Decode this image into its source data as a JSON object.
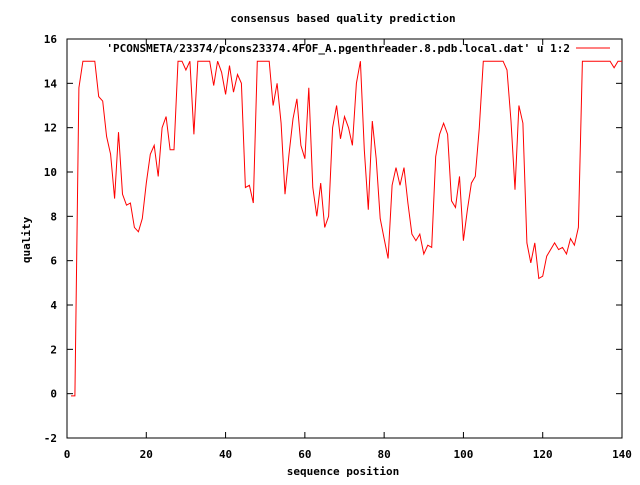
{
  "chart_data": {
    "type": "line",
    "title": "consensus based quality prediction",
    "xlabel": "sequence position",
    "ylabel": "quality",
    "xlim": [
      0,
      140
    ],
    "ylim": [
      -2,
      16
    ],
    "xticks": [
      0,
      20,
      40,
      60,
      80,
      100,
      120,
      140
    ],
    "yticks": [
      -2,
      0,
      2,
      4,
      6,
      8,
      10,
      12,
      14,
      16
    ],
    "grid": false,
    "legend_position": "top-right",
    "series": [
      {
        "name": "'PCONSMETA/23374/pcons23374.4FOF_A.pgenthreader.8.pdb.local.dat' u 1:2",
        "color": "#ff0000",
        "x": [
          1,
          2,
          3,
          4,
          5,
          6,
          7,
          8,
          9,
          10,
          11,
          12,
          13,
          14,
          15,
          16,
          17,
          18,
          19,
          20,
          21,
          22,
          23,
          24,
          25,
          26,
          27,
          28,
          29,
          30,
          31,
          32,
          33,
          34,
          35,
          36,
          37,
          38,
          39,
          40,
          41,
          42,
          43,
          44,
          45,
          46,
          47,
          48,
          49,
          50,
          51,
          52,
          53,
          54,
          55,
          56,
          57,
          58,
          59,
          60,
          61,
          62,
          63,
          64,
          65,
          66,
          67,
          68,
          69,
          70,
          71,
          72,
          73,
          74,
          75,
          76,
          77,
          78,
          79,
          80,
          81,
          82,
          83,
          84,
          85,
          86,
          87,
          88,
          89,
          90,
          91,
          92,
          93,
          94,
          95,
          96,
          97,
          98,
          99,
          100,
          101,
          102,
          103,
          104,
          105,
          106,
          107,
          108,
          109,
          110,
          111,
          112,
          113,
          114,
          115,
          116,
          117,
          118,
          119,
          120,
          121,
          122,
          123,
          124,
          125,
          126,
          127,
          128,
          129,
          130,
          131,
          132,
          133,
          134,
          135,
          136,
          137,
          138,
          139,
          140
        ],
        "values": [
          -0.1,
          -0.1,
          13.8,
          15.0,
          15.0,
          15.0,
          15.0,
          13.4,
          13.2,
          11.6,
          10.8,
          8.8,
          11.8,
          9.0,
          8.5,
          8.6,
          7.5,
          7.3,
          7.9,
          9.5,
          10.8,
          11.2,
          9.8,
          12.0,
          12.5,
          11.0,
          11.0,
          15.0,
          15.0,
          14.6,
          15.0,
          11.7,
          15.0,
          15.0,
          15.0,
          15.0,
          13.9,
          15.0,
          14.5,
          13.5,
          14.8,
          13.6,
          14.4,
          14.0,
          9.3,
          9.4,
          8.6,
          15.0,
          15.0,
          15.0,
          15.0,
          13.0,
          14.0,
          12.2,
          9.0,
          10.8,
          12.4,
          13.3,
          11.2,
          10.6,
          13.8,
          9.3,
          8.0,
          9.5,
          7.5,
          8.0,
          12.0,
          13.0,
          11.5,
          12.5,
          12.0,
          11.2,
          14.0,
          15.0,
          11.0,
          8.3,
          12.3,
          10.6,
          7.9,
          7.0,
          6.1,
          9.4,
          10.2,
          9.4,
          10.2,
          8.6,
          7.2,
          6.9,
          7.2,
          6.3,
          6.7,
          6.6,
          10.7,
          11.7,
          12.2,
          11.7,
          8.7,
          8.4,
          9.8,
          6.9,
          8.3,
          9.5,
          9.8,
          12.0,
          15.0,
          15.0,
          15.0,
          15.0,
          15.0,
          15.0,
          14.6,
          12.3,
          9.2,
          13.0,
          12.2,
          6.8,
          5.9,
          6.8,
          5.2,
          5.3,
          6.2,
          6.5,
          6.8,
          6.5,
          6.6,
          6.3,
          7.0,
          6.7,
          7.5,
          15.0,
          15.0,
          15.0,
          15.0,
          15.0,
          15.0,
          15.0,
          15.0,
          14.7,
          15.0,
          15.0
        ]
      }
    ]
  }
}
